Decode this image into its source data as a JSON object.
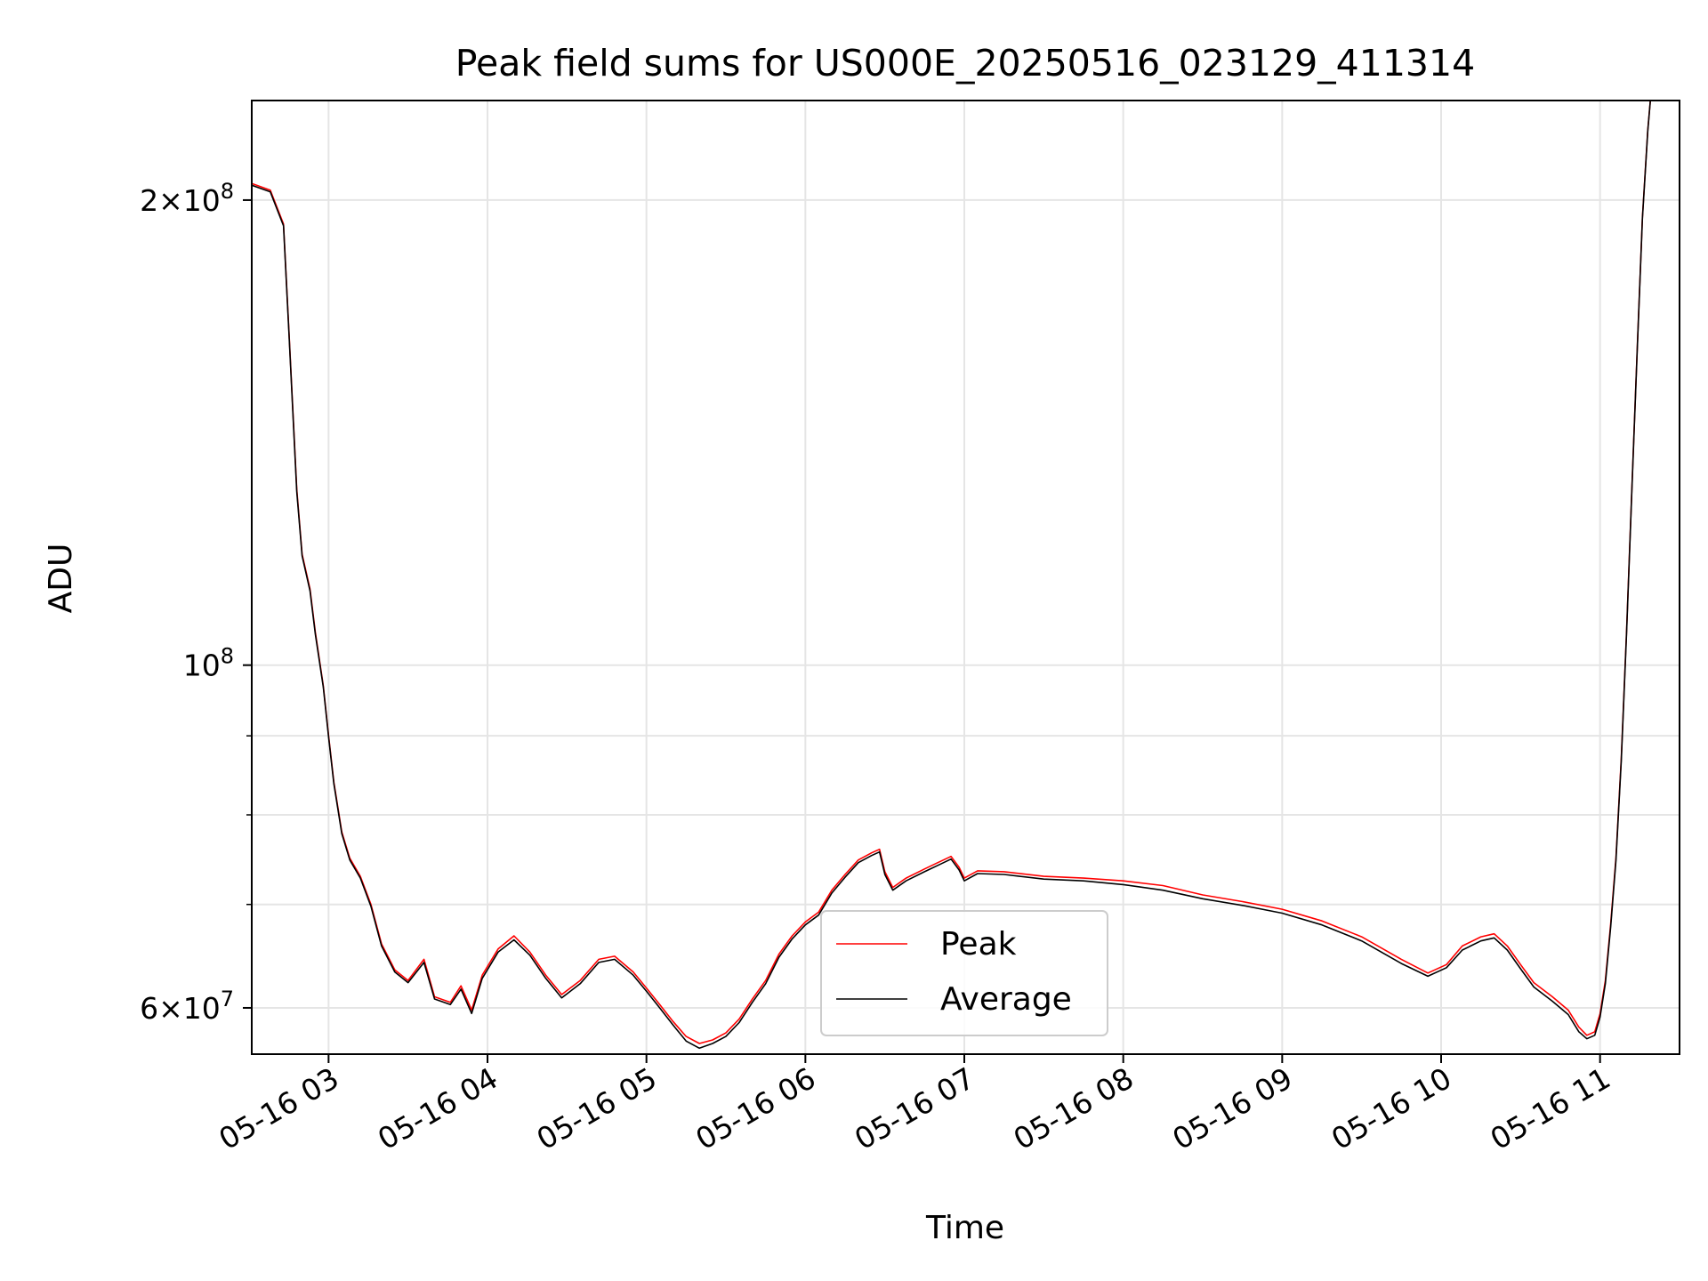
{
  "chart_data": {
    "type": "line",
    "title": "Peak field sums for US000E_20250516_023129_411314",
    "xlabel": "Time",
    "ylabel": "ADU",
    "y_scale": "log",
    "ylim": [
      56000000,
      232000000
    ],
    "xlim": [
      "05-16 02:31",
      "05-16 11:30"
    ],
    "x_ticks": [
      "05-16 03",
      "05-16 04",
      "05-16 05",
      "05-16 06",
      "05-16 07",
      "05-16 08",
      "05-16 09",
      "05-16 10",
      "05-16 11"
    ],
    "y_ticks": [
      {
        "value": 60000000,
        "base": "6",
        "times": "×",
        "power": "10",
        "exp": "7"
      },
      {
        "value": 100000000,
        "base": "",
        "times": "",
        "power": "10",
        "exp": "8"
      },
      {
        "value": 200000000,
        "base": "2",
        "times": "×",
        "power": "10",
        "exp": "8"
      }
    ],
    "y_minor_ticks": [
      70000000,
      80000000,
      90000000
    ],
    "grid": true,
    "legend_position": "lower center",
    "colors": {
      "peak": "#ff0000",
      "average": "#000000",
      "grid": "#e5e5e5"
    },
    "series": [
      {
        "name": "Peak",
        "color": "#ff0000",
        "points": [
          [
            "05-16 02:31",
            205000000
          ],
          [
            "05-16 02:38",
            203000000
          ],
          [
            "05-16 02:43",
            193000000
          ],
          [
            "05-16 02:45",
            165000000
          ],
          [
            "05-16 02:48",
            130000000
          ],
          [
            "05-16 02:50",
            118000000
          ],
          [
            "05-16 02:53",
            112000000
          ],
          [
            "05-16 02:55",
            105000000
          ],
          [
            "05-16 02:58",
            97000000
          ],
          [
            "05-16 03:00",
            90000000
          ],
          [
            "05-16 03:02",
            84000000
          ],
          [
            "05-16 03:05",
            78000000
          ],
          [
            "05-16 03:08",
            75000000
          ],
          [
            "05-16 03:12",
            73000000
          ],
          [
            "05-16 03:16",
            70000000
          ],
          [
            "05-16 03:20",
            66000000
          ],
          [
            "05-16 03:25",
            63500000
          ],
          [
            "05-16 03:30",
            62500000
          ],
          [
            "05-16 03:36",
            64500000
          ],
          [
            "05-16 03:40",
            61000000
          ],
          [
            "05-16 03:46",
            60500000
          ],
          [
            "05-16 03:50",
            62000000
          ],
          [
            "05-16 03:54",
            59800000
          ],
          [
            "05-16 03:58",
            63000000
          ],
          [
            "05-16 04:04",
            65500000
          ],
          [
            "05-16 04:10",
            66800000
          ],
          [
            "05-16 04:16",
            65200000
          ],
          [
            "05-16 04:22",
            63000000
          ],
          [
            "05-16 04:28",
            61200000
          ],
          [
            "05-16 04:35",
            62500000
          ],
          [
            "05-16 04:42",
            64500000
          ],
          [
            "05-16 04:48",
            64800000
          ],
          [
            "05-16 04:55",
            63300000
          ],
          [
            "05-16 05:00",
            61800000
          ],
          [
            "05-16 05:05",
            60300000
          ],
          [
            "05-16 05:10",
            58800000
          ],
          [
            "05-16 05:15",
            57500000
          ],
          [
            "05-16 05:20",
            56900000
          ],
          [
            "05-16 05:25",
            57200000
          ],
          [
            "05-16 05:30",
            57800000
          ],
          [
            "05-16 05:35",
            59000000
          ],
          [
            "05-16 05:40",
            60800000
          ],
          [
            "05-16 05:45",
            62500000
          ],
          [
            "05-16 05:50",
            65000000
          ],
          [
            "05-16 05:55",
            66800000
          ],
          [
            "05-16 06:00",
            68200000
          ],
          [
            "05-16 06:05",
            69200000
          ],
          [
            "05-16 06:10",
            71500000
          ],
          [
            "05-16 06:15",
            73200000
          ],
          [
            "05-16 06:20",
            74800000
          ],
          [
            "05-16 06:25",
            75600000
          ],
          [
            "05-16 06:28",
            76000000
          ],
          [
            "05-16 06:30",
            73500000
          ],
          [
            "05-16 06:33",
            71800000
          ],
          [
            "05-16 06:38",
            72800000
          ],
          [
            "05-16 06:45",
            73800000
          ],
          [
            "05-16 06:50",
            74500000
          ],
          [
            "05-16 06:55",
            75200000
          ],
          [
            "05-16 06:58",
            74000000
          ],
          [
            "05-16 07:00",
            72800000
          ],
          [
            "05-16 07:05",
            73600000
          ],
          [
            "05-16 07:15",
            73500000
          ],
          [
            "05-16 07:30",
            73000000
          ],
          [
            "05-16 07:45",
            72800000
          ],
          [
            "05-16 08:00",
            72500000
          ],
          [
            "05-16 08:15",
            72000000
          ],
          [
            "05-16 08:30",
            71000000
          ],
          [
            "05-16 08:45",
            70300000
          ],
          [
            "05-16 09:00",
            69500000
          ],
          [
            "05-16 09:15",
            68300000
          ],
          [
            "05-16 09:30",
            66700000
          ],
          [
            "05-16 09:45",
            64500000
          ],
          [
            "05-16 09:55",
            63200000
          ],
          [
            "05-16 10:02",
            64000000
          ],
          [
            "05-16 10:08",
            65800000
          ],
          [
            "05-16 10:15",
            66700000
          ],
          [
            "05-16 10:20",
            67000000
          ],
          [
            "05-16 10:25",
            65800000
          ],
          [
            "05-16 10:30",
            64000000
          ],
          [
            "05-16 10:35",
            62300000
          ],
          [
            "05-16 10:42",
            61000000
          ],
          [
            "05-16 10:48",
            59800000
          ],
          [
            "05-16 10:52",
            58300000
          ],
          [
            "05-16 10:55",
            57600000
          ],
          [
            "05-16 10:58",
            57900000
          ],
          [
            "05-16 11:00",
            59500000
          ],
          [
            "05-16 11:02",
            62500000
          ],
          [
            "05-16 11:04",
            68000000
          ],
          [
            "05-16 11:06",
            75000000
          ],
          [
            "05-16 11:08",
            87000000
          ],
          [
            "05-16 11:10",
            105000000
          ],
          [
            "05-16 11:12",
            130000000
          ],
          [
            "05-16 11:14",
            160000000
          ],
          [
            "05-16 11:16",
            195000000
          ],
          [
            "05-16 11:18",
            222000000
          ],
          [
            "05-16 11:19",
            232000000
          ]
        ]
      },
      {
        "name": "Average",
        "color": "#000000",
        "points": [
          [
            "05-16 02:31",
            204500000
          ],
          [
            "05-16 02:38",
            202500000
          ],
          [
            "05-16 02:43",
            192500000
          ],
          [
            "05-16 02:45",
            164500000
          ],
          [
            "05-16 02:48",
            129500000
          ],
          [
            "05-16 02:50",
            117700000
          ],
          [
            "05-16 02:53",
            111700000
          ],
          [
            "05-16 02:55",
            104700000
          ],
          [
            "05-16 02:58",
            96800000
          ],
          [
            "05-16 03:00",
            89800000
          ],
          [
            "05-16 03:02",
            83800000
          ],
          [
            "05-16 03:05",
            77800000
          ],
          [
            "05-16 03:08",
            74800000
          ],
          [
            "05-16 03:12",
            72800000
          ],
          [
            "05-16 03:16",
            69800000
          ],
          [
            "05-16 03:20",
            65800000
          ],
          [
            "05-16 03:25",
            63300000
          ],
          [
            "05-16 03:30",
            62300000
          ],
          [
            "05-16 03:36",
            64200000
          ],
          [
            "05-16 03:40",
            60800000
          ],
          [
            "05-16 03:46",
            60300000
          ],
          [
            "05-16 03:50",
            61700000
          ],
          [
            "05-16 03:54",
            59500000
          ],
          [
            "05-16 03:58",
            62700000
          ],
          [
            "05-16 04:04",
            65200000
          ],
          [
            "05-16 04:10",
            66400000
          ],
          [
            "05-16 04:16",
            64900000
          ],
          [
            "05-16 04:22",
            62700000
          ],
          [
            "05-16 04:28",
            60900000
          ],
          [
            "05-16 04:35",
            62200000
          ],
          [
            "05-16 04:42",
            64200000
          ],
          [
            "05-16 04:48",
            64500000
          ],
          [
            "05-16 04:55",
            63000000
          ],
          [
            "05-16 05:00",
            61500000
          ],
          [
            "05-16 05:05",
            60000000
          ],
          [
            "05-16 05:10",
            58500000
          ],
          [
            "05-16 05:15",
            57100000
          ],
          [
            "05-16 05:20",
            56500000
          ],
          [
            "05-16 05:25",
            56900000
          ],
          [
            "05-16 05:30",
            57500000
          ],
          [
            "05-16 05:35",
            58700000
          ],
          [
            "05-16 05:40",
            60500000
          ],
          [
            "05-16 05:45",
            62200000
          ],
          [
            "05-16 05:50",
            64700000
          ],
          [
            "05-16 05:55",
            66500000
          ],
          [
            "05-16 06:00",
            67900000
          ],
          [
            "05-16 06:05",
            68900000
          ],
          [
            "05-16 06:10",
            71200000
          ],
          [
            "05-16 06:15",
            72900000
          ],
          [
            "05-16 06:20",
            74500000
          ],
          [
            "05-16 06:25",
            75300000
          ],
          [
            "05-16 06:28",
            75700000
          ],
          [
            "05-16 06:30",
            73200000
          ],
          [
            "05-16 06:33",
            71500000
          ],
          [
            "05-16 06:38",
            72500000
          ],
          [
            "05-16 06:45",
            73500000
          ],
          [
            "05-16 06:50",
            74200000
          ],
          [
            "05-16 06:55",
            74900000
          ],
          [
            "05-16 06:58",
            73700000
          ],
          [
            "05-16 07:00",
            72500000
          ],
          [
            "05-16 07:05",
            73300000
          ],
          [
            "05-16 07:15",
            73200000
          ],
          [
            "05-16 07:30",
            72700000
          ],
          [
            "05-16 07:45",
            72500000
          ],
          [
            "05-16 08:00",
            72100000
          ],
          [
            "05-16 08:15",
            71500000
          ],
          [
            "05-16 08:30",
            70600000
          ],
          [
            "05-16 08:45",
            69900000
          ],
          [
            "05-16 09:00",
            69100000
          ],
          [
            "05-16 09:15",
            67900000
          ],
          [
            "05-16 09:30",
            66300000
          ],
          [
            "05-16 09:45",
            64100000
          ],
          [
            "05-16 09:55",
            62900000
          ],
          [
            "05-16 10:02",
            63700000
          ],
          [
            "05-16 10:08",
            65400000
          ],
          [
            "05-16 10:15",
            66300000
          ],
          [
            "05-16 10:20",
            66600000
          ],
          [
            "05-16 10:25",
            65400000
          ],
          [
            "05-16 10:30",
            63600000
          ],
          [
            "05-16 10:35",
            61900000
          ],
          [
            "05-16 10:42",
            60600000
          ],
          [
            "05-16 10:48",
            59400000
          ],
          [
            "05-16 10:52",
            57900000
          ],
          [
            "05-16 10:55",
            57300000
          ],
          [
            "05-16 10:58",
            57600000
          ],
          [
            "05-16 11:00",
            59200000
          ],
          [
            "05-16 11:02",
            62200000
          ],
          [
            "05-16 11:04",
            67700000
          ],
          [
            "05-16 11:06",
            74700000
          ],
          [
            "05-16 11:08",
            86700000
          ],
          [
            "05-16 11:10",
            104700000
          ],
          [
            "05-16 11:12",
            129700000
          ],
          [
            "05-16 11:14",
            159700000
          ],
          [
            "05-16 11:16",
            194700000
          ],
          [
            "05-16 11:18",
            221700000
          ],
          [
            "05-16 11:19",
            232000000
          ]
        ]
      }
    ]
  }
}
